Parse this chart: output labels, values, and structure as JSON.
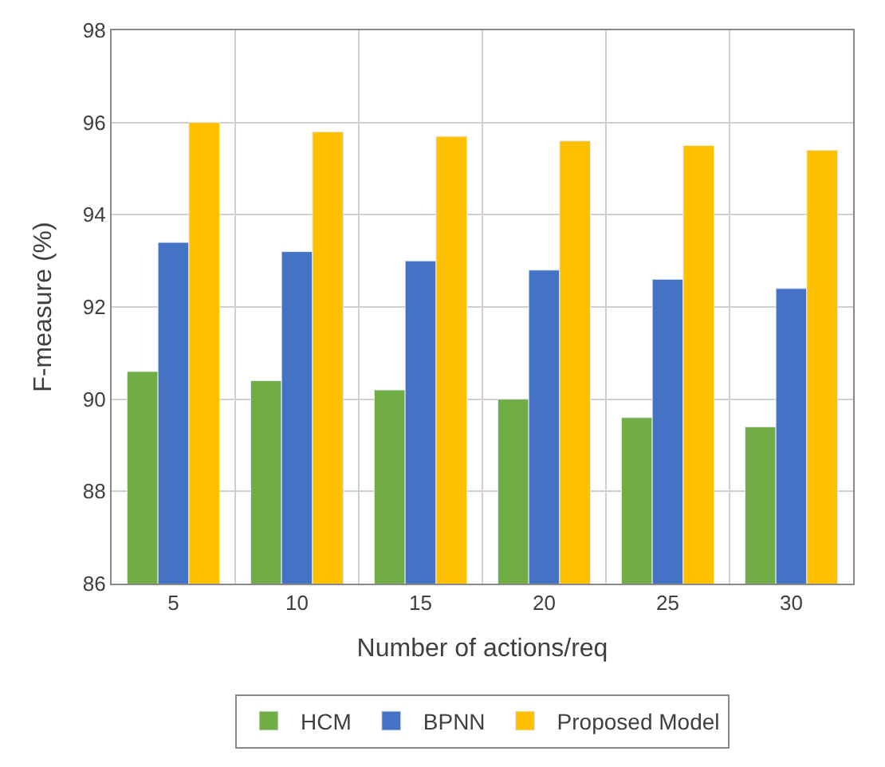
{
  "chart_data": {
    "type": "bar",
    "xlabel": "Number of actions/req",
    "ylabel": "F-measure (%)",
    "categories": [
      "5",
      "10",
      "15",
      "20",
      "25",
      "30"
    ],
    "series": [
      {
        "name": "HCM",
        "color": "#70ad47",
        "values": [
          90.6,
          90.4,
          90.2,
          90.0,
          89.6,
          89.4
        ]
      },
      {
        "name": "BPNN",
        "color": "#4472c4",
        "values": [
          93.4,
          93.2,
          93.0,
          92.8,
          92.6,
          92.4
        ]
      },
      {
        "name": "Proposed Model",
        "color": "#ffc000",
        "values": [
          96.0,
          95.8,
          95.7,
          95.6,
          95.5,
          95.4
        ]
      }
    ],
    "ylim": [
      86,
      98
    ],
    "yticks": [
      86,
      88,
      90,
      92,
      94,
      96,
      98
    ],
    "grid": true,
    "legend": "bottom"
  }
}
